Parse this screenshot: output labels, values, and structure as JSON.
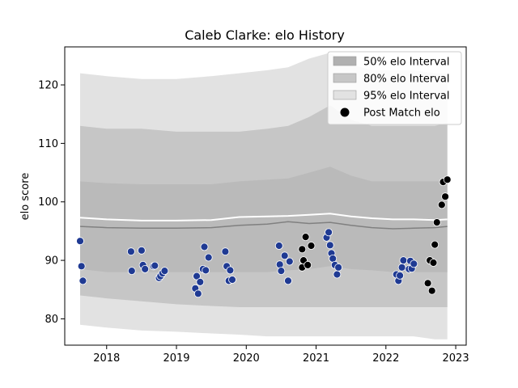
{
  "chart_data": {
    "type": "scatter",
    "title": "Caleb Clarke: elo History",
    "xlabel": "",
    "ylabel": "elo score",
    "xlim": [
      2017.4,
      2023.15
    ],
    "ylim": [
      75.5,
      126.5
    ],
    "x_ticks": [
      2018,
      2019,
      2020,
      2021,
      2022,
      2023
    ],
    "x_tick_labels": [
      "2018",
      "2019",
      "2020",
      "2021",
      "2022",
      "2023"
    ],
    "y_ticks": [
      80,
      90,
      100,
      110,
      120
    ],
    "y_tick_labels": [
      "80",
      "90",
      "100",
      "110",
      "120"
    ],
    "grid": false,
    "legend_position": "top-right",
    "colors": {
      "band_50": "#b0b0b0",
      "band_80": "#c6c6c6",
      "band_95": "#e2e2e2",
      "median_line": "#ffffff",
      "mean_line": "#808080",
      "post_match": "#000000",
      "history_points": "#1f3a93"
    },
    "legend": [
      {
        "label": "50% elo Interval",
        "kind": "band",
        "color": "#b0b0b0"
      },
      {
        "label": "80% elo Interval",
        "kind": "band",
        "color": "#c6c6c6"
      },
      {
        "label": "95% elo Interval",
        "kind": "band",
        "color": "#e2e2e2"
      },
      {
        "label": "Post Match elo",
        "kind": "marker",
        "color": "#000000"
      }
    ],
    "bands": {
      "x": [
        2017.62,
        2018.0,
        2018.5,
        2019.0,
        2019.5,
        2019.9,
        2020.3,
        2020.6,
        2020.9,
        2021.2,
        2021.5,
        2021.8,
        2022.1,
        2022.4,
        2022.7,
        2022.88
      ],
      "p95_upper": [
        122.0,
        121.5,
        121.0,
        121.0,
        121.5,
        122.0,
        122.5,
        123.0,
        124.5,
        125.5,
        123.5,
        122.5,
        122.5,
        122.5,
        122.0,
        122.0
      ],
      "p95_lower": [
        79.0,
        78.5,
        78.0,
        77.8,
        77.5,
        77.3,
        77.0,
        77.0,
        77.0,
        77.0,
        77.0,
        77.0,
        77.0,
        77.0,
        76.5,
        76.5
      ],
      "p80_upper": [
        113.0,
        112.5,
        112.5,
        112.0,
        112.0,
        112.0,
        112.5,
        113.0,
        114.5,
        116.5,
        114.0,
        113.0,
        113.0,
        113.0,
        113.0,
        113.5
      ],
      "p80_lower": [
        84.0,
        83.5,
        83.0,
        82.5,
        82.2,
        82.0,
        82.0,
        82.0,
        82.0,
        82.0,
        82.0,
        82.0,
        82.0,
        82.0,
        82.0,
        82.0
      ],
      "p50_upper": [
        103.5,
        103.2,
        103.0,
        103.0,
        103.0,
        103.5,
        103.8,
        104.0,
        105.0,
        106.0,
        104.5,
        103.5,
        103.5,
        103.5,
        103.5,
        103.5
      ],
      "p50_lower": [
        88.5,
        88.0,
        88.0,
        88.0,
        88.0,
        88.0,
        88.0,
        88.3,
        88.5,
        89.0,
        88.5,
        88.3,
        88.0,
        88.0,
        88.0,
        88.0
      ],
      "median": [
        97.3,
        97.0,
        96.8,
        96.8,
        96.9,
        97.4,
        97.5,
        97.6,
        97.8,
        98.0,
        97.5,
        97.2,
        97.0,
        97.0,
        96.9,
        97.0
      ],
      "mean": [
        95.8,
        95.6,
        95.5,
        95.5,
        95.6,
        96.0,
        96.2,
        96.6,
        96.3,
        96.5,
        96.0,
        95.6,
        95.4,
        95.5,
        95.6,
        95.8
      ]
    },
    "history_points": [
      {
        "x": 2017.62,
        "y": 93.3
      },
      {
        "x": 2017.64,
        "y": 89.0
      },
      {
        "x": 2017.66,
        "y": 86.5
      },
      {
        "x": 2018.35,
        "y": 91.5
      },
      {
        "x": 2018.36,
        "y": 88.2
      },
      {
        "x": 2018.5,
        "y": 91.7
      },
      {
        "x": 2018.52,
        "y": 89.2
      },
      {
        "x": 2018.55,
        "y": 88.5
      },
      {
        "x": 2018.67,
        "y": 89.0
      },
      {
        "x": 2018.69,
        "y": 89.1
      },
      {
        "x": 2018.75,
        "y": 87.0
      },
      {
        "x": 2018.77,
        "y": 87.3
      },
      {
        "x": 2018.8,
        "y": 87.8
      },
      {
        "x": 2018.83,
        "y": 88.2
      },
      {
        "x": 2019.27,
        "y": 85.2
      },
      {
        "x": 2019.29,
        "y": 87.3
      },
      {
        "x": 2019.31,
        "y": 84.3
      },
      {
        "x": 2019.34,
        "y": 86.3
      },
      {
        "x": 2019.38,
        "y": 88.5
      },
      {
        "x": 2019.4,
        "y": 92.3
      },
      {
        "x": 2019.42,
        "y": 88.3
      },
      {
        "x": 2019.46,
        "y": 90.5
      },
      {
        "x": 2019.7,
        "y": 91.5
      },
      {
        "x": 2019.72,
        "y": 89.0
      },
      {
        "x": 2019.75,
        "y": 86.5
      },
      {
        "x": 2019.77,
        "y": 88.3
      },
      {
        "x": 2019.8,
        "y": 86.7
      },
      {
        "x": 2020.47,
        "y": 92.5
      },
      {
        "x": 2020.48,
        "y": 89.3
      },
      {
        "x": 2020.5,
        "y": 88.2
      },
      {
        "x": 2020.55,
        "y": 90.8
      },
      {
        "x": 2020.6,
        "y": 86.5
      },
      {
        "x": 2020.62,
        "y": 89.8
      },
      {
        "x": 2021.15,
        "y": 93.9
      },
      {
        "x": 2021.18,
        "y": 94.8
      },
      {
        "x": 2021.2,
        "y": 92.6
      },
      {
        "x": 2021.22,
        "y": 91.2
      },
      {
        "x": 2021.24,
        "y": 90.3
      },
      {
        "x": 2021.27,
        "y": 89.2
      },
      {
        "x": 2021.3,
        "y": 87.6
      },
      {
        "x": 2021.32,
        "y": 88.8
      },
      {
        "x": 2022.15,
        "y": 87.6
      },
      {
        "x": 2022.18,
        "y": 86.5
      },
      {
        "x": 2022.2,
        "y": 87.4
      },
      {
        "x": 2022.23,
        "y": 88.8
      },
      {
        "x": 2022.25,
        "y": 90.0
      },
      {
        "x": 2022.33,
        "y": 88.5
      },
      {
        "x": 2022.35,
        "y": 89.9
      },
      {
        "x": 2022.37,
        "y": 88.6
      },
      {
        "x": 2022.4,
        "y": 89.4
      }
    ],
    "post_match_points": [
      {
        "x": 2020.8,
        "y": 91.9
      },
      {
        "x": 2020.82,
        "y": 90.0
      },
      {
        "x": 2020.8,
        "y": 88.8
      },
      {
        "x": 2020.85,
        "y": 94.0
      },
      {
        "x": 2020.88,
        "y": 89.2
      },
      {
        "x": 2020.93,
        "y": 92.5
      },
      {
        "x": 2022.6,
        "y": 86.1
      },
      {
        "x": 2022.63,
        "y": 90.0
      },
      {
        "x": 2022.66,
        "y": 84.8
      },
      {
        "x": 2022.68,
        "y": 89.6
      },
      {
        "x": 2022.7,
        "y": 92.7
      },
      {
        "x": 2022.73,
        "y": 96.5
      },
      {
        "x": 2022.8,
        "y": 99.5
      },
      {
        "x": 2022.82,
        "y": 103.4
      },
      {
        "x": 2022.85,
        "y": 100.9
      },
      {
        "x": 2022.88,
        "y": 103.8
      }
    ]
  }
}
